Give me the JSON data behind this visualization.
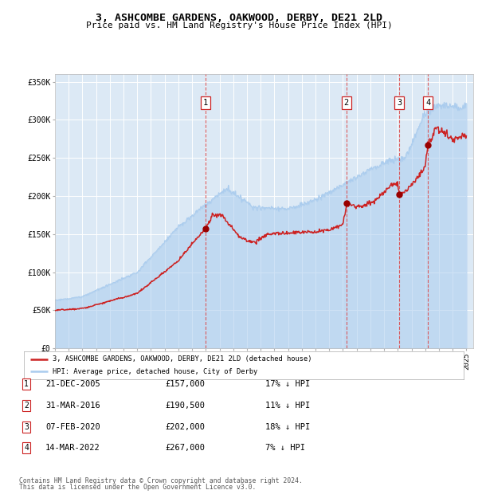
{
  "title_line1": "3, ASHCOMBE GARDENS, OAKWOOD, DERBY, DE21 2LD",
  "title_line2": "Price paid vs. HM Land Registry's House Price Index (HPI)",
  "ylim": [
    0,
    360000
  ],
  "xlim_start": 1995.0,
  "xlim_end": 2025.5,
  "yticks": [
    0,
    50000,
    100000,
    150000,
    200000,
    250000,
    300000,
    350000
  ],
  "ytick_labels": [
    "£0",
    "£50K",
    "£100K",
    "£150K",
    "£200K",
    "£250K",
    "£300K",
    "£350K"
  ],
  "background_color": "#ffffff",
  "plot_bg_color": "#dce9f5",
  "grid_color": "#ffffff",
  "hpi_color": "#aaccee",
  "price_color": "#cc2222",
  "sale_marker_color": "#990000",
  "dashed_line_color": "#dd4444",
  "legend_label_price": "3, ASHCOMBE GARDENS, OAKWOOD, DERBY, DE21 2LD (detached house)",
  "legend_label_hpi": "HPI: Average price, detached house, City of Derby",
  "sales": [
    {
      "num": 1,
      "date_year": 2005.97,
      "price": 157000,
      "label": "21-DEC-2005",
      "price_str": "£157,000",
      "pct": "17%"
    },
    {
      "num": 2,
      "date_year": 2016.25,
      "price": 190500,
      "label": "31-MAR-2016",
      "price_str": "£190,500",
      "pct": "11%"
    },
    {
      "num": 3,
      "date_year": 2020.1,
      "price": 202000,
      "label": "07-FEB-2020",
      "price_str": "£202,000",
      "pct": "18%"
    },
    {
      "num": 4,
      "date_year": 2022.2,
      "price": 267000,
      "label": "14-MAR-2022",
      "price_str": "£267,000",
      "pct": "7%"
    }
  ],
  "footer_line1": "Contains HM Land Registry data © Crown copyright and database right 2024.",
  "footer_line2": "This data is licensed under the Open Government Licence v3.0."
}
